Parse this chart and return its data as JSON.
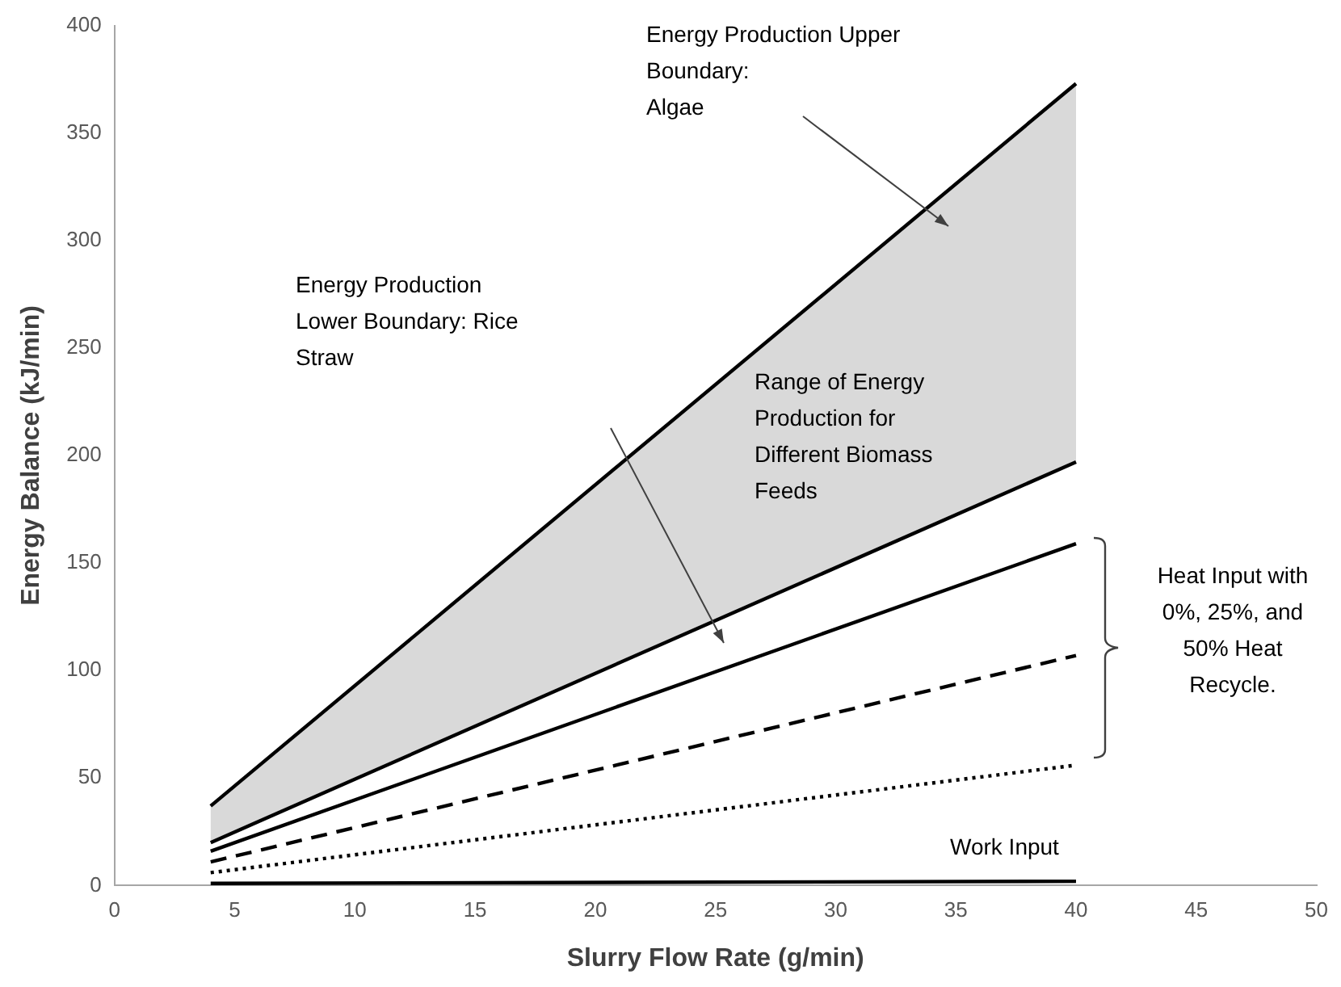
{
  "chart_data": {
    "type": "line",
    "xlabel": "Slurry Flow Rate (g/min)",
    "ylabel": "Energy Balance (kJ/min)",
    "xlim": [
      0,
      50
    ],
    "xticks": [
      0,
      5,
      10,
      15,
      20,
      25,
      30,
      35,
      40,
      45,
      50
    ],
    "ylim": [
      0,
      400
    ],
    "yticks": [
      0,
      50,
      100,
      150,
      200,
      250,
      300,
      350,
      400
    ],
    "grid": false,
    "legend": false,
    "marker": "none",
    "x": [
      4,
      40
    ],
    "series": [
      {
        "color": "#000000",
        "values": [
          37,
          373
        ],
        "lower": [
          20,
          197
        ],
        "upper": [
          37,
          373
        ],
        "line_style": "solid"
      },
      {
        "color": "#000000",
        "values": [
          20,
          197
        ],
        "line_style": "solid"
      },
      {
        "color": "#000000",
        "values": [
          16,
          159
        ],
        "line_style": "solid"
      },
      {
        "color": "#000000",
        "values": [
          11,
          107
        ],
        "line_style": "dashed"
      },
      {
        "color": "#000000",
        "values": [
          6,
          56
        ],
        "line_style": "dotted"
      },
      {
        "color": "#000000",
        "values": [
          1,
          2
        ],
        "line_style": "solid"
      }
    ],
    "annotations": [
      "Energy Production Upper\nBoundary:\nAlgae",
      "Energy Production\nLower Boundary: Rice\nStraw",
      "Range of Energy\nProduction for\nDifferent Biomass\nFeeds",
      "Heat Input with\n0%, 25%, and\n50% Heat\nRecycle.",
      "Work Input"
    ]
  }
}
